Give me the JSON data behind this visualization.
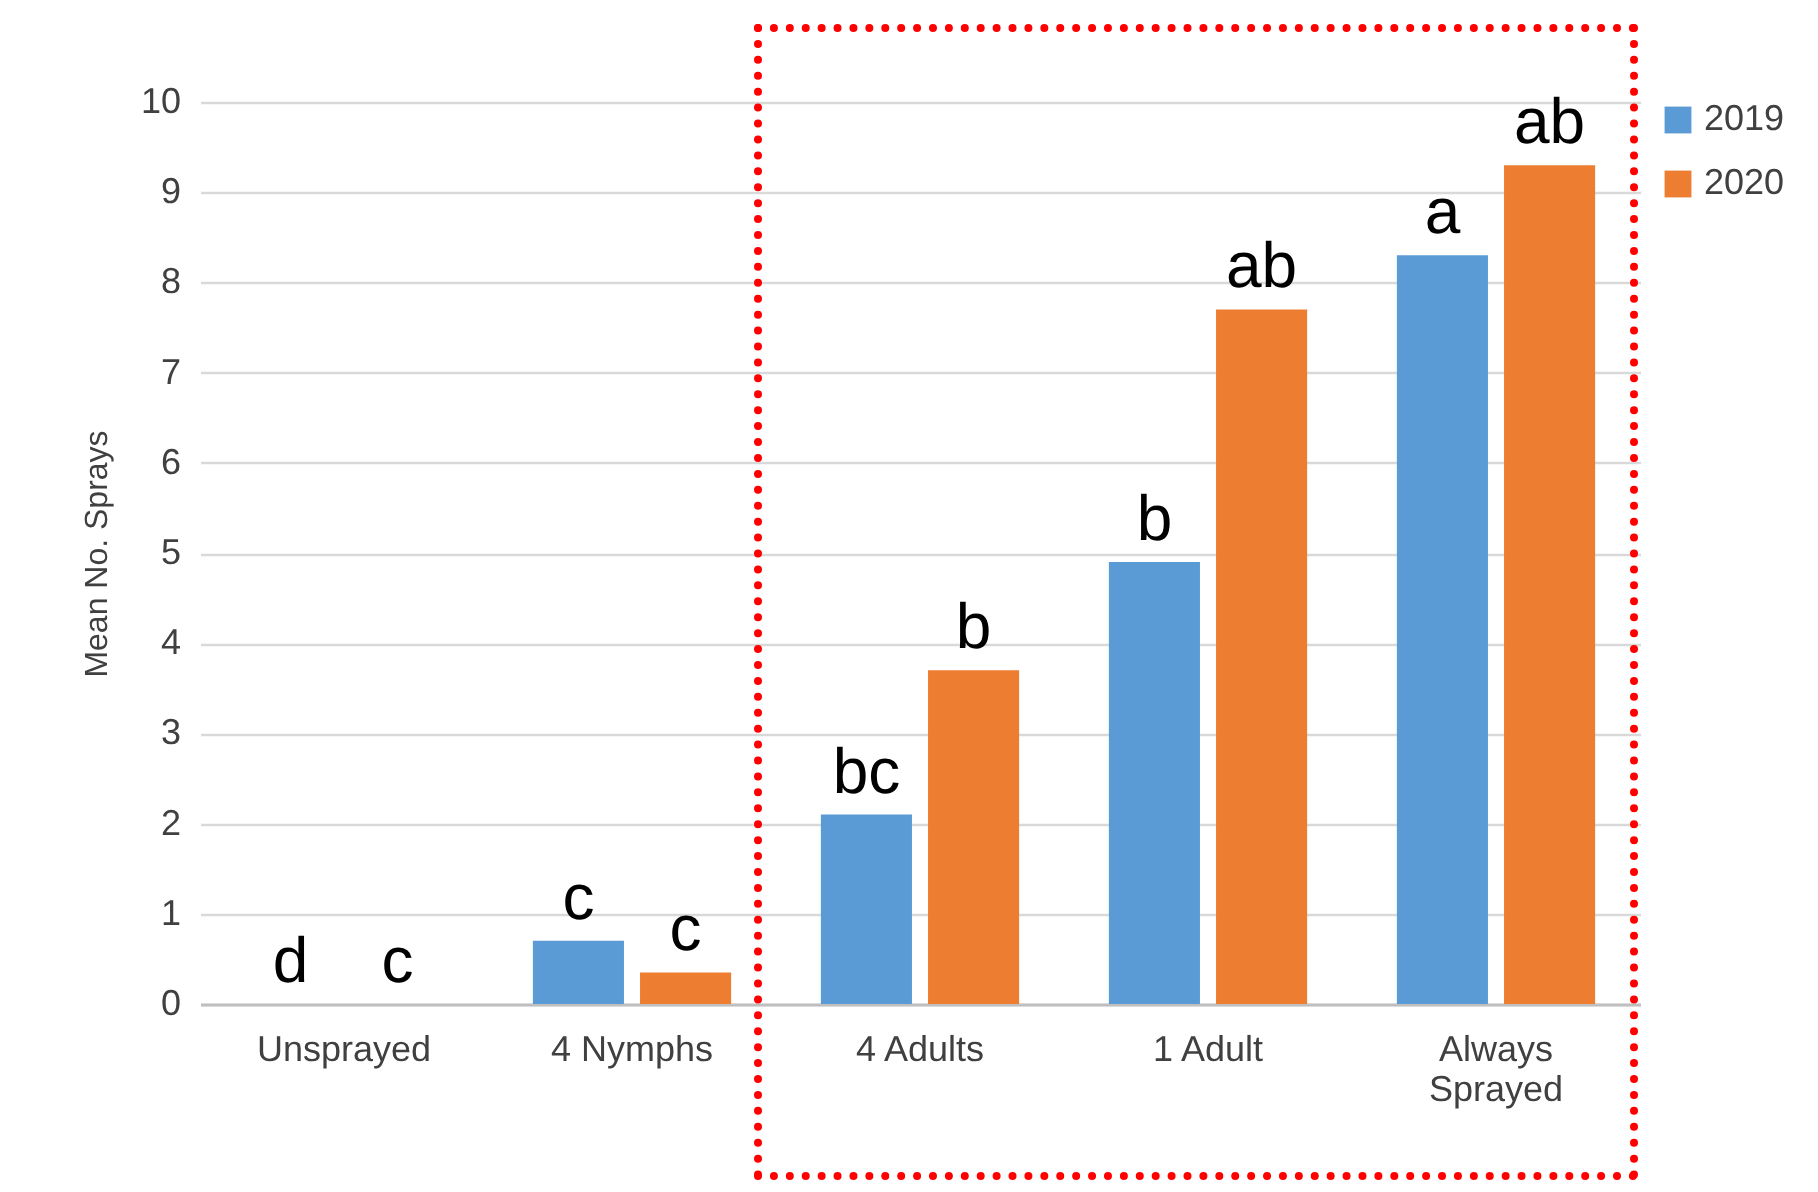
{
  "chart_data": {
    "type": "bar",
    "ylabel": "Mean No. Sprays",
    "categories": [
      "Unsprayed",
      "4 Nymphs",
      "4 Adults",
      "1 Adult",
      "Always Sprayed"
    ],
    "series": [
      {
        "name": "2019",
        "color": "#5b9bd5",
        "values": [
          0,
          0.7,
          2.1,
          4.9,
          8.3
        ],
        "value_labels": [
          "d",
          "c",
          "bc",
          "b",
          "a"
        ]
      },
      {
        "name": "2020",
        "color": "#ed7d31",
        "values": [
          0,
          0.35,
          3.7,
          7.7,
          9.3
        ],
        "value_labels": [
          "c",
          "c",
          "b",
          "ab",
          "ab"
        ]
      }
    ],
    "ylim": [
      0,
      10
    ],
    "yticks": [
      0,
      1,
      2,
      3,
      4,
      5,
      6,
      7,
      8,
      9,
      10
    ],
    "grid": "y",
    "legend": "right"
  }
}
